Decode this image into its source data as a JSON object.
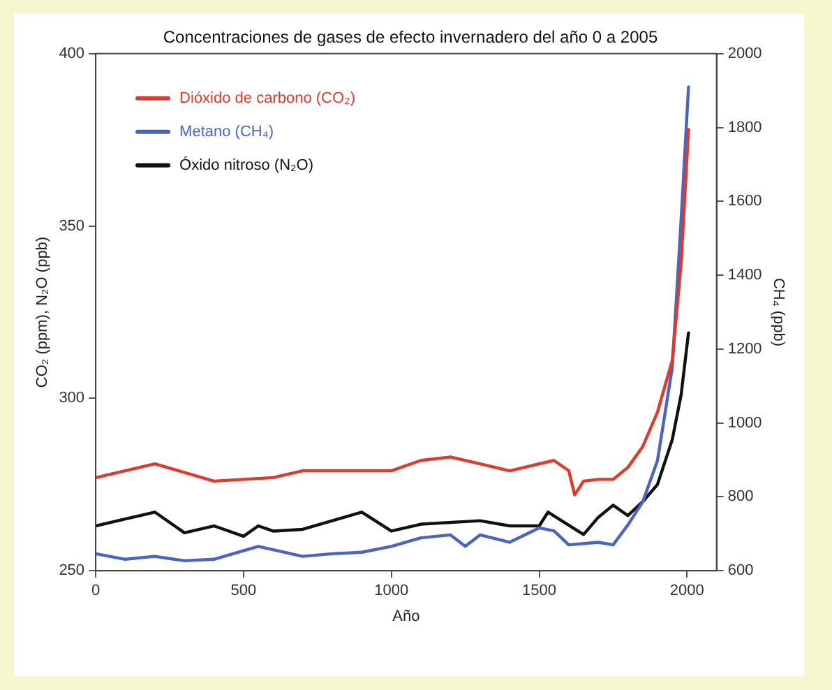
{
  "chart_data": {
    "type": "line",
    "title": "Concentraciones de gases de efecto invernadero del año 0 a 2005",
    "xlabel": "Año",
    "ylabel": "CO₂ (ppm), N₂O (ppb)",
    "y2label": "CH₄ (ppb)",
    "xlim": [
      0,
      2100
    ],
    "xticks": [
      0,
      500,
      1000,
      1500,
      2000
    ],
    "ylim": [
      250,
      400
    ],
    "yticks": [
      250,
      300,
      350,
      400
    ],
    "y2lim": [
      600,
      2000
    ],
    "y2ticks": [
      600,
      800,
      1000,
      1200,
      1400,
      1600,
      1800,
      2000
    ],
    "grid": false,
    "legend": "top left",
    "marker": "none",
    "line_style": "solid",
    "series": [
      {
        "name": "Dióxido de carbono (CO₂)",
        "color": "#e03a2a",
        "x": [
          0,
          200,
          400,
          600,
          700,
          900,
          1000,
          1100,
          1200,
          1300,
          1400,
          1500,
          1550,
          1600,
          1620,
          1650,
          1700,
          1750,
          1800,
          1850,
          1900,
          1950,
          1980,
          2005
        ],
        "values": [
          277,
          281,
          276,
          277,
          279,
          279,
          279,
          282,
          283,
          281,
          279,
          281,
          282,
          279,
          272,
          276,
          276.5,
          276.5,
          280,
          286,
          296,
          311,
          339,
          378
        ]
      },
      {
        "name": "Metano (CH₄)",
        "color": "#4a64c4",
        "axis": "y2",
        "x": [
          0,
          100,
          200,
          300,
          400,
          550,
          700,
          800,
          900,
          1000,
          1100,
          1200,
          1250,
          1300,
          1400,
          1500,
          1550,
          1600,
          1700,
          1750,
          1800,
          1850,
          1900,
          1950,
          1980,
          2005
        ],
        "values": [
          646,
          631,
          639,
          627,
          631,
          666,
          639,
          646,
          650,
          666,
          689,
          697,
          666,
          697,
          677,
          716,
          708,
          670,
          677,
          670,
          724,
          786,
          898,
          1150,
          1550,
          1910
        ]
      },
      {
        "name": "Óxido nitroso (N₂O)",
        "color": "#111111",
        "x": [
          0,
          100,
          200,
          300,
          400,
          500,
          550,
          600,
          700,
          800,
          900,
          1000,
          1100,
          1300,
          1400,
          1500,
          1530,
          1650,
          1700,
          1750,
          1800,
          1850,
          1900,
          1950,
          1980,
          2005
        ],
        "values": [
          263,
          265,
          267,
          261,
          263,
          260,
          263,
          261.5,
          262,
          264.5,
          267,
          261.5,
          263.5,
          264.5,
          263,
          263,
          267,
          260.5,
          265.5,
          269,
          266,
          270,
          275,
          288,
          301,
          319
        ]
      }
    ]
  }
}
